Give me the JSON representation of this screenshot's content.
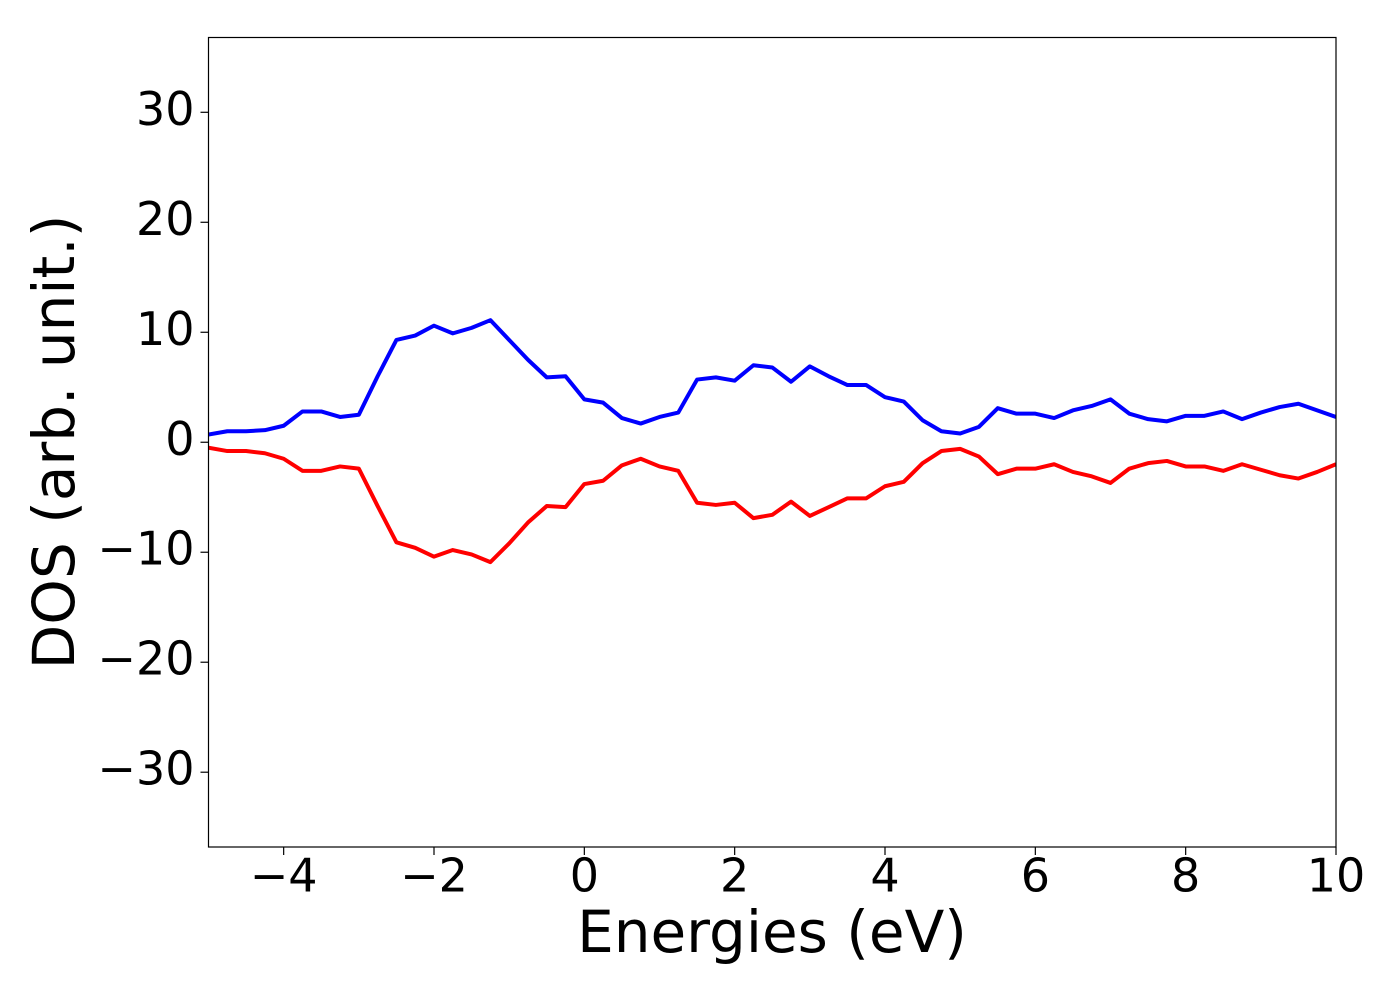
{
  "chart_data": {
    "type": "line",
    "xlabel": "Energies (eV)",
    "ylabel": "DOS (arb. unit.)",
    "x": [
      -5,
      -4.75,
      -4.5,
      -4.25,
      -4,
      -3.75,
      -3.5,
      -3.25,
      -3,
      -2.75,
      -2.5,
      -2.25,
      -2,
      -1.75,
      -1.5,
      -1.25,
      -1,
      -0.75,
      -0.5,
      -0.25,
      0,
      0.25,
      0.5,
      0.75,
      1,
      1.25,
      1.5,
      1.75,
      2,
      2.25,
      2.5,
      2.75,
      3,
      3.25,
      3.5,
      3.75,
      4,
      4.25,
      4.5,
      4.75,
      5,
      5.25,
      5.5,
      5.75,
      6,
      6.25,
      6.5,
      6.75,
      7,
      7.25,
      7.5,
      7.75,
      8,
      8.25,
      8.5,
      8.75,
      9,
      9.25,
      9.5,
      9.75,
      10
    ],
    "series": [
      {
        "color": "#0000ff",
        "values": [
          0.7,
          1.0,
          1.0,
          1.1,
          1.5,
          2.8,
          2.8,
          2.3,
          2.5,
          6.0,
          9.3,
          9.7,
          10.6,
          9.9,
          10.4,
          11.1,
          9.3,
          7.5,
          5.9,
          6.0,
          3.9,
          3.6,
          2.2,
          1.7,
          2.3,
          2.7,
          5.7,
          5.9,
          5.6,
          7.0,
          6.8,
          5.5,
          6.9,
          6.0,
          5.2,
          5.2,
          4.1,
          3.7,
          2.0,
          1.0,
          0.8,
          1.4,
          3.1,
          2.6,
          2.6,
          2.2,
          2.9,
          3.3,
          3.9,
          2.6,
          2.1,
          1.9,
          2.4,
          2.4,
          2.8,
          2.1,
          2.7,
          3.2,
          3.5,
          2.9,
          2.3
        ]
      },
      {
        "color": "#ff0000",
        "values": [
          -0.5,
          -0.8,
          -0.8,
          -1.0,
          -1.5,
          -2.6,
          -2.6,
          -2.2,
          -2.4,
          -5.8,
          -9.1,
          -9.6,
          -10.4,
          -9.8,
          -10.2,
          -10.9,
          -9.2,
          -7.3,
          -5.8,
          -5.9,
          -3.8,
          -3.5,
          -2.1,
          -1.5,
          -2.2,
          -2.6,
          -5.5,
          -5.7,
          -5.5,
          -6.9,
          -6.6,
          -5.4,
          -6.7,
          -5.9,
          -5.1,
          -5.1,
          -4.0,
          -3.6,
          -1.9,
          -0.8,
          -0.6,
          -1.3,
          -2.9,
          -2.4,
          -2.4,
          -2.0,
          -2.7,
          -3.1,
          -3.7,
          -2.4,
          -1.9,
          -1.7,
          -2.2,
          -2.2,
          -2.6,
          -2.0,
          -2.5,
          -3.0,
          -3.3,
          -2.7,
          -2.0
        ]
      }
    ],
    "xlim": [
      -5,
      10
    ],
    "ylim": [
      -36.8,
      36.8
    ],
    "xticks": [
      {
        "value": -4,
        "label": "−4"
      },
      {
        "value": -2,
        "label": "−2"
      },
      0,
      2,
      4,
      6,
      8,
      10
    ],
    "yticks": [
      {
        "value": -30,
        "label": "−30"
      },
      {
        "value": -20,
        "label": "−20"
      },
      {
        "value": -10,
        "label": "−10"
      },
      0,
      10,
      20,
      30
    ],
    "grid": false
  }
}
